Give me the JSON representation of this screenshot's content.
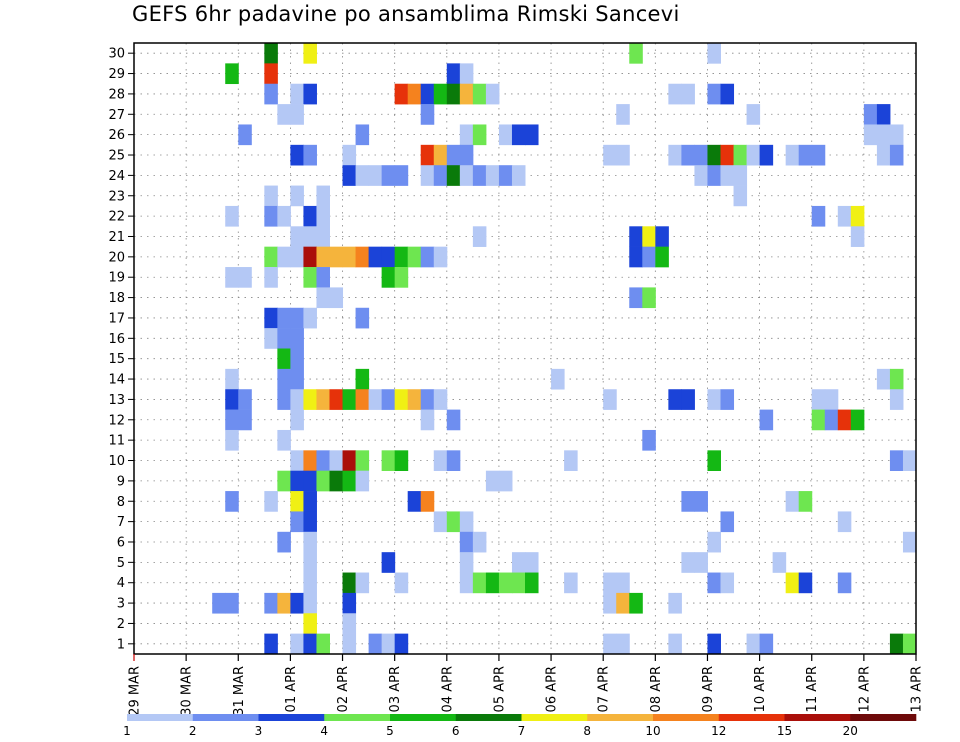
{
  "title": "GEFS 6hr padavine po ansamblima Rimski Sancevi",
  "chart_data": {
    "type": "heatmap",
    "title": "GEFS 6hr padavine po ansamblima Rimski Sancevi",
    "xlabel": "",
    "ylabel": "",
    "x_ticks": [
      "29 MAR",
      "30 MAR",
      "31 MAR",
      "01 APR",
      "02 APR",
      "03 APR",
      "04 APR",
      "05 APR",
      "06 APR",
      "07 APR",
      "08 APR",
      "09 APR",
      "10 APR",
      "11 APR",
      "12 APR",
      "13 APR"
    ],
    "x_range": [
      0,
      60
    ],
    "y_ticks": [
      1,
      2,
      3,
      4,
      5,
      6,
      7,
      8,
      9,
      10,
      11,
      12,
      13,
      14,
      15,
      16,
      17,
      18,
      19,
      20,
      21,
      22,
      23,
      24,
      25,
      26,
      27,
      28,
      29,
      30
    ],
    "y_range": [
      0.5,
      30.5
    ],
    "grid": true,
    "colorbar": {
      "levels": [
        1,
        2,
        3,
        4,
        5,
        6,
        7,
        8,
        10,
        12,
        15,
        20
      ],
      "colors": [
        "#b4c8f5",
        "#6e8ef0",
        "#1b43d8",
        "#6ee650",
        "#14b814",
        "#0a7a0a",
        "#f0f014",
        "#f5b43c",
        "#f5821e",
        "#e6320a",
        "#aa0f0a",
        "#6e0a0a"
      ]
    },
    "cells": [
      {
        "x": 11,
        "y": 30,
        "c": 6
      },
      {
        "x": 14,
        "y": 30,
        "c": 7
      },
      {
        "x": 39,
        "y": 30,
        "c": 4
      },
      {
        "x": 45,
        "y": 30,
        "c": 1
      },
      {
        "x": 8,
        "y": 29,
        "c": 5
      },
      {
        "x": 11,
        "y": 29,
        "c": 10
      },
      {
        "x": 25,
        "y": 29,
        "c": 3
      },
      {
        "x": 26,
        "y": 29,
        "c": 1
      },
      {
        "x": 11,
        "y": 28,
        "c": 2
      },
      {
        "x": 13,
        "y": 28,
        "c": 1
      },
      {
        "x": 14,
        "y": 28,
        "c": 3
      },
      {
        "x": 21,
        "y": 28,
        "c": 10
      },
      {
        "x": 22,
        "y": 28,
        "c": 9
      },
      {
        "x": 23,
        "y": 28,
        "c": 3
      },
      {
        "x": 24,
        "y": 28,
        "c": 5
      },
      {
        "x": 25,
        "y": 28,
        "c": 6
      },
      {
        "x": 26,
        "y": 28,
        "c": 8
      },
      {
        "x": 27,
        "y": 28,
        "c": 4
      },
      {
        "x": 28,
        "y": 28,
        "c": 1
      },
      {
        "x": 42,
        "y": 28,
        "c": 1
      },
      {
        "x": 43,
        "y": 28,
        "c": 1
      },
      {
        "x": 45,
        "y": 28,
        "c": 2
      },
      {
        "x": 46,
        "y": 28,
        "c": 3
      },
      {
        "x": 12,
        "y": 27,
        "c": 1
      },
      {
        "x": 13,
        "y": 27,
        "c": 1
      },
      {
        "x": 23,
        "y": 27,
        "c": 2
      },
      {
        "x": 38,
        "y": 27,
        "c": 1
      },
      {
        "x": 48,
        "y": 27,
        "c": 1
      },
      {
        "x": 57,
        "y": 27,
        "c": 2
      },
      {
        "x": 58,
        "y": 27,
        "c": 3
      },
      {
        "x": 9,
        "y": 26,
        "c": 2
      },
      {
        "x": 18,
        "y": 26,
        "c": 2
      },
      {
        "x": 26,
        "y": 26,
        "c": 1
      },
      {
        "x": 27,
        "y": 26,
        "c": 4
      },
      {
        "x": 29,
        "y": 26,
        "c": 1
      },
      {
        "x": 30,
        "y": 26,
        "c": 3
      },
      {
        "x": 31,
        "y": 26,
        "c": 3
      },
      {
        "x": 57,
        "y": 26,
        "c": 1
      },
      {
        "x": 58,
        "y": 26,
        "c": 1
      },
      {
        "x": 59,
        "y": 26,
        "c": 1
      },
      {
        "x": 13,
        "y": 25,
        "c": 3
      },
      {
        "x": 14,
        "y": 25,
        "c": 2
      },
      {
        "x": 17,
        "y": 25,
        "c": 1
      },
      {
        "x": 23,
        "y": 25,
        "c": 10
      },
      {
        "x": 24,
        "y": 25,
        "c": 8
      },
      {
        "x": 25,
        "y": 25,
        "c": 2
      },
      {
        "x": 26,
        "y": 25,
        "c": 2
      },
      {
        "x": 37,
        "y": 25,
        "c": 1
      },
      {
        "x": 38,
        "y": 25,
        "c": 1
      },
      {
        "x": 42,
        "y": 25,
        "c": 1
      },
      {
        "x": 43,
        "y": 25,
        "c": 2
      },
      {
        "x": 44,
        "y": 25,
        "c": 2
      },
      {
        "x": 45,
        "y": 25,
        "c": 6
      },
      {
        "x": 46,
        "y": 25,
        "c": 10
      },
      {
        "x": 47,
        "y": 25,
        "c": 4
      },
      {
        "x": 48,
        "y": 25,
        "c": 1
      },
      {
        "x": 49,
        "y": 25,
        "c": 3
      },
      {
        "x": 51,
        "y": 25,
        "c": 1
      },
      {
        "x": 52,
        "y": 25,
        "c": 2
      },
      {
        "x": 53,
        "y": 25,
        "c": 2
      },
      {
        "x": 58,
        "y": 25,
        "c": 1
      },
      {
        "x": 59,
        "y": 25,
        "c": 2
      },
      {
        "x": 17,
        "y": 24,
        "c": 3
      },
      {
        "x": 18,
        "y": 24,
        "c": 1
      },
      {
        "x": 19,
        "y": 24,
        "c": 1
      },
      {
        "x": 20,
        "y": 24,
        "c": 2
      },
      {
        "x": 21,
        "y": 24,
        "c": 2
      },
      {
        "x": 23,
        "y": 24,
        "c": 1
      },
      {
        "x": 24,
        "y": 24,
        "c": 2
      },
      {
        "x": 25,
        "y": 24,
        "c": 6
      },
      {
        "x": 26,
        "y": 24,
        "c": 1
      },
      {
        "x": 27,
        "y": 24,
        "c": 2
      },
      {
        "x": 28,
        "y": 24,
        "c": 1
      },
      {
        "x": 29,
        "y": 24,
        "c": 2
      },
      {
        "x": 30,
        "y": 24,
        "c": 1
      },
      {
        "x": 44,
        "y": 24,
        "c": 1
      },
      {
        "x": 45,
        "y": 24,
        "c": 2
      },
      {
        "x": 46,
        "y": 24,
        "c": 1
      },
      {
        "x": 47,
        "y": 24,
        "c": 1
      },
      {
        "x": 11,
        "y": 23,
        "c": 1
      },
      {
        "x": 13,
        "y": 23,
        "c": 1
      },
      {
        "x": 15,
        "y": 23,
        "c": 1
      },
      {
        "x": 47,
        "y": 23,
        "c": 1
      },
      {
        "x": 8,
        "y": 22,
        "c": 1
      },
      {
        "x": 11,
        "y": 22,
        "c": 2
      },
      {
        "x": 12,
        "y": 22,
        "c": 1
      },
      {
        "x": 14,
        "y": 22,
        "c": 3
      },
      {
        "x": 15,
        "y": 22,
        "c": 1
      },
      {
        "x": 53,
        "y": 22,
        "c": 2
      },
      {
        "x": 55,
        "y": 22,
        "c": 1
      },
      {
        "x": 56,
        "y": 22,
        "c": 7
      },
      {
        "x": 13,
        "y": 21,
        "c": 1
      },
      {
        "x": 14,
        "y": 21,
        "c": 1
      },
      {
        "x": 15,
        "y": 21,
        "c": 1
      },
      {
        "x": 27,
        "y": 21,
        "c": 1
      },
      {
        "x": 39,
        "y": 21,
        "c": 3
      },
      {
        "x": 40,
        "y": 21,
        "c": 7
      },
      {
        "x": 41,
        "y": 21,
        "c": 3
      },
      {
        "x": 56,
        "y": 21,
        "c": 1
      },
      {
        "x": 11,
        "y": 20,
        "c": 4
      },
      {
        "x": 12,
        "y": 20,
        "c": 1
      },
      {
        "x": 13,
        "y": 20,
        "c": 1
      },
      {
        "x": 14,
        "y": 20,
        "c": 11
      },
      {
        "x": 15,
        "y": 20,
        "c": 8
      },
      {
        "x": 16,
        "y": 20,
        "c": 8
      },
      {
        "x": 17,
        "y": 20,
        "c": 8
      },
      {
        "x": 18,
        "y": 20,
        "c": 9
      },
      {
        "x": 19,
        "y": 20,
        "c": 3
      },
      {
        "x": 20,
        "y": 20,
        "c": 3
      },
      {
        "x": 21,
        "y": 20,
        "c": 5
      },
      {
        "x": 22,
        "y": 20,
        "c": 4
      },
      {
        "x": 23,
        "y": 20,
        "c": 2
      },
      {
        "x": 24,
        "y": 20,
        "c": 1
      },
      {
        "x": 39,
        "y": 20,
        "c": 3
      },
      {
        "x": 40,
        "y": 20,
        "c": 2
      },
      {
        "x": 41,
        "y": 20,
        "c": 5
      },
      {
        "x": 8,
        "y": 19,
        "c": 1
      },
      {
        "x": 9,
        "y": 19,
        "c": 1
      },
      {
        "x": 11,
        "y": 19,
        "c": 1
      },
      {
        "x": 14,
        "y": 19,
        "c": 4
      },
      {
        "x": 15,
        "y": 19,
        "c": 2
      },
      {
        "x": 20,
        "y": 19,
        "c": 5
      },
      {
        "x": 21,
        "y": 19,
        "c": 4
      },
      {
        "x": 15,
        "y": 18,
        "c": 1
      },
      {
        "x": 16,
        "y": 18,
        "c": 1
      },
      {
        "x": 39,
        "y": 18,
        "c": 2
      },
      {
        "x": 40,
        "y": 18,
        "c": 4
      },
      {
        "x": 11,
        "y": 17,
        "c": 3
      },
      {
        "x": 12,
        "y": 17,
        "c": 2
      },
      {
        "x": 13,
        "y": 17,
        "c": 2
      },
      {
        "x": 14,
        "y": 17,
        "c": 1
      },
      {
        "x": 18,
        "y": 17,
        "c": 2
      },
      {
        "x": 11,
        "y": 16,
        "c": 1
      },
      {
        "x": 12,
        "y": 16,
        "c": 2
      },
      {
        "x": 13,
        "y": 16,
        "c": 2
      },
      {
        "x": 12,
        "y": 15,
        "c": 5
      },
      {
        "x": 13,
        "y": 15,
        "c": 2
      },
      {
        "x": 8,
        "y": 14,
        "c": 1
      },
      {
        "x": 12,
        "y": 14,
        "c": 2
      },
      {
        "x": 13,
        "y": 14,
        "c": 2
      },
      {
        "x": 18,
        "y": 14,
        "c": 5
      },
      {
        "x": 33,
        "y": 14,
        "c": 1
      },
      {
        "x": 58,
        "y": 14,
        "c": 1
      },
      {
        "x": 59,
        "y": 14,
        "c": 4
      },
      {
        "x": 8,
        "y": 13,
        "c": 3
      },
      {
        "x": 9,
        "y": 13,
        "c": 2
      },
      {
        "x": 12,
        "y": 13,
        "c": 2
      },
      {
        "x": 13,
        "y": 13,
        "c": 1
      },
      {
        "x": 14,
        "y": 13,
        "c": 7
      },
      {
        "x": 15,
        "y": 13,
        "c": 8
      },
      {
        "x": 16,
        "y": 13,
        "c": 10
      },
      {
        "x": 17,
        "y": 13,
        "c": 5
      },
      {
        "x": 18,
        "y": 13,
        "c": 9
      },
      {
        "x": 19,
        "y": 13,
        "c": 1
      },
      {
        "x": 20,
        "y": 13,
        "c": 2
      },
      {
        "x": 21,
        "y": 13,
        "c": 7
      },
      {
        "x": 22,
        "y": 13,
        "c": 8
      },
      {
        "x": 23,
        "y": 13,
        "c": 2
      },
      {
        "x": 24,
        "y": 13,
        "c": 1
      },
      {
        "x": 37,
        "y": 13,
        "c": 1
      },
      {
        "x": 42,
        "y": 13,
        "c": 3
      },
      {
        "x": 43,
        "y": 13,
        "c": 3
      },
      {
        "x": 45,
        "y": 13,
        "c": 1
      },
      {
        "x": 46,
        "y": 13,
        "c": 2
      },
      {
        "x": 53,
        "y": 13,
        "c": 1
      },
      {
        "x": 54,
        "y": 13,
        "c": 1
      },
      {
        "x": 59,
        "y": 13,
        "c": 1
      },
      {
        "x": 8,
        "y": 12,
        "c": 2
      },
      {
        "x": 9,
        "y": 12,
        "c": 2
      },
      {
        "x": 13,
        "y": 12,
        "c": 1
      },
      {
        "x": 23,
        "y": 12,
        "c": 1
      },
      {
        "x": 25,
        "y": 12,
        "c": 2
      },
      {
        "x": 49,
        "y": 12,
        "c": 2
      },
      {
        "x": 53,
        "y": 12,
        "c": 4
      },
      {
        "x": 54,
        "y": 12,
        "c": 2
      },
      {
        "x": 55,
        "y": 12,
        "c": 10
      },
      {
        "x": 56,
        "y": 12,
        "c": 5
      },
      {
        "x": 8,
        "y": 11,
        "c": 1
      },
      {
        "x": 12,
        "y": 11,
        "c": 1
      },
      {
        "x": 40,
        "y": 11,
        "c": 2
      },
      {
        "x": 13,
        "y": 10,
        "c": 1
      },
      {
        "x": 14,
        "y": 10,
        "c": 9
      },
      {
        "x": 15,
        "y": 10,
        "c": 2
      },
      {
        "x": 16,
        "y": 10,
        "c": 1
      },
      {
        "x": 17,
        "y": 10,
        "c": 11
      },
      {
        "x": 18,
        "y": 10,
        "c": 4
      },
      {
        "x": 20,
        "y": 10,
        "c": 4
      },
      {
        "x": 21,
        "y": 10,
        "c": 5
      },
      {
        "x": 24,
        "y": 10,
        "c": 1
      },
      {
        "x": 25,
        "y": 10,
        "c": 2
      },
      {
        "x": 34,
        "y": 10,
        "c": 1
      },
      {
        "x": 45,
        "y": 10,
        "c": 5
      },
      {
        "x": 59,
        "y": 10,
        "c": 2
      },
      {
        "x": 60,
        "y": 10,
        "c": 1
      },
      {
        "x": 12,
        "y": 9,
        "c": 4
      },
      {
        "x": 13,
        "y": 9,
        "c": 3
      },
      {
        "x": 14,
        "y": 9,
        "c": 3
      },
      {
        "x": 15,
        "y": 9,
        "c": 4
      },
      {
        "x": 16,
        "y": 9,
        "c": 6
      },
      {
        "x": 17,
        "y": 9,
        "c": 5
      },
      {
        "x": 18,
        "y": 9,
        "c": 1
      },
      {
        "x": 28,
        "y": 9,
        "c": 1
      },
      {
        "x": 29,
        "y": 9,
        "c": 1
      },
      {
        "x": 8,
        "y": 8,
        "c": 2
      },
      {
        "x": 11,
        "y": 8,
        "c": 1
      },
      {
        "x": 13,
        "y": 8,
        "c": 7
      },
      {
        "x": 14,
        "y": 8,
        "c": 3
      },
      {
        "x": 22,
        "y": 8,
        "c": 3
      },
      {
        "x": 23,
        "y": 8,
        "c": 9
      },
      {
        "x": 43,
        "y": 8,
        "c": 2
      },
      {
        "x": 44,
        "y": 8,
        "c": 2
      },
      {
        "x": 51,
        "y": 8,
        "c": 1
      },
      {
        "x": 52,
        "y": 8,
        "c": 4
      },
      {
        "x": 13,
        "y": 7,
        "c": 2
      },
      {
        "x": 14,
        "y": 7,
        "c": 3
      },
      {
        "x": 24,
        "y": 7,
        "c": 1
      },
      {
        "x": 25,
        "y": 7,
        "c": 4
      },
      {
        "x": 26,
        "y": 7,
        "c": 1
      },
      {
        "x": 46,
        "y": 7,
        "c": 2
      },
      {
        "x": 55,
        "y": 7,
        "c": 1
      },
      {
        "x": 12,
        "y": 6,
        "c": 2
      },
      {
        "x": 14,
        "y": 6,
        "c": 1
      },
      {
        "x": 26,
        "y": 6,
        "c": 2
      },
      {
        "x": 27,
        "y": 6,
        "c": 1
      },
      {
        "x": 45,
        "y": 6,
        "c": 1
      },
      {
        "x": 60,
        "y": 6,
        "c": 1
      },
      {
        "x": 14,
        "y": 5,
        "c": 1
      },
      {
        "x": 20,
        "y": 5,
        "c": 3
      },
      {
        "x": 26,
        "y": 5,
        "c": 1
      },
      {
        "x": 30,
        "y": 5,
        "c": 1
      },
      {
        "x": 31,
        "y": 5,
        "c": 1
      },
      {
        "x": 43,
        "y": 5,
        "c": 1
      },
      {
        "x": 44,
        "y": 5,
        "c": 1
      },
      {
        "x": 50,
        "y": 5,
        "c": 1
      },
      {
        "x": 14,
        "y": 4,
        "c": 1
      },
      {
        "x": 17,
        "y": 4,
        "c": 6
      },
      {
        "x": 18,
        "y": 4,
        "c": 1
      },
      {
        "x": 21,
        "y": 4,
        "c": 1
      },
      {
        "x": 26,
        "y": 4,
        "c": 1
      },
      {
        "x": 27,
        "y": 4,
        "c": 4
      },
      {
        "x": 28,
        "y": 4,
        "c": 5
      },
      {
        "x": 29,
        "y": 4,
        "c": 4
      },
      {
        "x": 30,
        "y": 4,
        "c": 4
      },
      {
        "x": 31,
        "y": 4,
        "c": 5
      },
      {
        "x": 34,
        "y": 4,
        "c": 1
      },
      {
        "x": 37,
        "y": 4,
        "c": 1
      },
      {
        "x": 38,
        "y": 4,
        "c": 1
      },
      {
        "x": 45,
        "y": 4,
        "c": 2
      },
      {
        "x": 46,
        "y": 4,
        "c": 1
      },
      {
        "x": 51,
        "y": 4,
        "c": 7
      },
      {
        "x": 52,
        "y": 4,
        "c": 3
      },
      {
        "x": 55,
        "y": 4,
        "c": 2
      },
      {
        "x": 7,
        "y": 3,
        "c": 2
      },
      {
        "x": 8,
        "y": 3,
        "c": 2
      },
      {
        "x": 11,
        "y": 3,
        "c": 2
      },
      {
        "x": 12,
        "y": 3,
        "c": 8
      },
      {
        "x": 13,
        "y": 3,
        "c": 3
      },
      {
        "x": 14,
        "y": 3,
        "c": 1
      },
      {
        "x": 17,
        "y": 3,
        "c": 3
      },
      {
        "x": 37,
        "y": 3,
        "c": 1
      },
      {
        "x": 38,
        "y": 3,
        "c": 8
      },
      {
        "x": 39,
        "y": 3,
        "c": 5
      },
      {
        "x": 42,
        "y": 3,
        "c": 1
      },
      {
        "x": 14,
        "y": 2,
        "c": 7
      },
      {
        "x": 17,
        "y": 2,
        "c": 1
      },
      {
        "x": 11,
        "y": 1,
        "c": 3
      },
      {
        "x": 13,
        "y": 1,
        "c": 1
      },
      {
        "x": 14,
        "y": 1,
        "c": 3
      },
      {
        "x": 15,
        "y": 1,
        "c": 4
      },
      {
        "x": 17,
        "y": 1,
        "c": 1
      },
      {
        "x": 19,
        "y": 1,
        "c": 2
      },
      {
        "x": 20,
        "y": 1,
        "c": 1
      },
      {
        "x": 21,
        "y": 1,
        "c": 3
      },
      {
        "x": 37,
        "y": 1,
        "c": 1
      },
      {
        "x": 38,
        "y": 1,
        "c": 1
      },
      {
        "x": 42,
        "y": 1,
        "c": 1
      },
      {
        "x": 45,
        "y": 1,
        "c": 3
      },
      {
        "x": 48,
        "y": 1,
        "c": 1
      },
      {
        "x": 49,
        "y": 1,
        "c": 2
      },
      {
        "x": 59,
        "y": 1,
        "c": 6
      },
      {
        "x": 60,
        "y": 1,
        "c": 4
      }
    ]
  }
}
